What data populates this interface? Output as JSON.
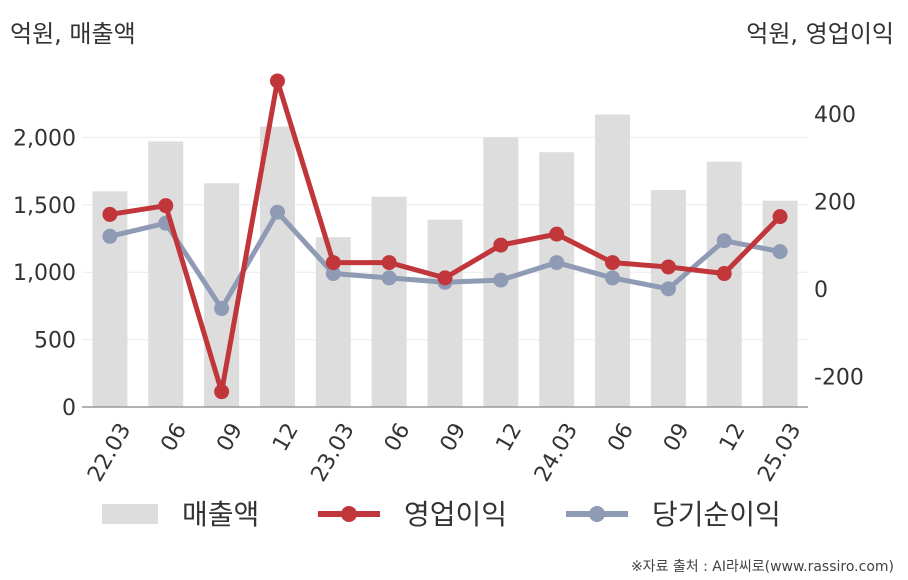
{
  "chart_data": {
    "type": "bar+line",
    "categories": [
      "22.03",
      "06",
      "09",
      "12",
      "23.03",
      "06",
      "09",
      "12",
      "24.03",
      "06",
      "09",
      "12",
      "25.03"
    ],
    "left_axis": {
      "unit_label": "억원, 매출액",
      "ylim": [
        0,
        2500
      ],
      "ticks": [
        0,
        500,
        1000,
        1500,
        2000
      ],
      "tick_labels": [
        "0",
        "500",
        "1,000",
        "1,500",
        "2,000"
      ]
    },
    "right_axis": {
      "unit_label": "억원, 영업이익",
      "ylim": [
        -270,
        500
      ],
      "ticks": [
        -200,
        0,
        200,
        400
      ],
      "tick_labels": [
        "-200",
        "0",
        "200",
        "400"
      ]
    },
    "series": [
      {
        "name": "매출액",
        "kind": "bar",
        "axis": "left",
        "color": "#dddddd",
        "values": [
          1600,
          1970,
          1660,
          2080,
          1260,
          1560,
          1390,
          2000,
          1890,
          2170,
          1610,
          1820,
          1530
        ]
      },
      {
        "name": "영업이익",
        "kind": "line",
        "axis": "right",
        "color": "#c0363a",
        "values": [
          170,
          190,
          -235,
          475,
          60,
          60,
          25,
          100,
          125,
          60,
          50,
          35,
          165
        ]
      },
      {
        "name": "당기순이익",
        "kind": "line",
        "axis": "right",
        "color": "#8f9ab4",
        "values": [
          120,
          150,
          -45,
          175,
          35,
          25,
          15,
          20,
          60,
          25,
          0,
          110,
          85
        ]
      }
    ],
    "grid": true,
    "legend_position": "bottom"
  },
  "source_text": "※자료 출처 : AI라씨로(www.rassiro.com)"
}
